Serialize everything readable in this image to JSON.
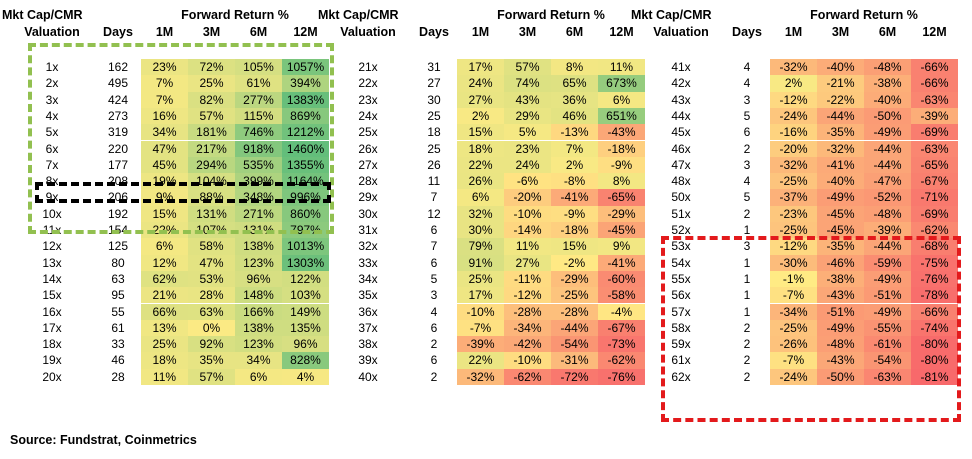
{
  "headers": {
    "group_title": "Mkt Cap/CMR",
    "forward_title": "Forward Return %",
    "valuation": "Valuation",
    "days": "Days",
    "periods": [
      "1M",
      "3M",
      "6M",
      "12M"
    ]
  },
  "source": "Source: Fundstrat, Coinmetrics",
  "colors": {
    "green_box": "#92c050",
    "black_box": "#000000",
    "red_box": "#e31a1c",
    "scale_red": "#f8696b",
    "scale_yellow": "#ffeb84",
    "scale_green": "#63be7b"
  },
  "chart_data": {
    "type": "table",
    "columns": [
      "Mkt Cap/CMR Valuation",
      "Days",
      "1M",
      "3M",
      "6M",
      "12M"
    ],
    "panels": [
      {
        "rows": [
          {
            "val": "1x",
            "days": "162",
            "r": [
              "23%",
              "72%",
              "105%",
              "1057%"
            ]
          },
          {
            "val": "2x",
            "days": "495",
            "r": [
              "7%",
              "25%",
              "61%",
              "394%"
            ]
          },
          {
            "val": "3x",
            "days": "424",
            "r": [
              "7%",
              "82%",
              "277%",
              "1383%"
            ]
          },
          {
            "val": "4x",
            "days": "273",
            "r": [
              "16%",
              "57%",
              "115%",
              "869%"
            ]
          },
          {
            "val": "5x",
            "days": "319",
            "r": [
              "34%",
              "181%",
              "746%",
              "1212%"
            ]
          },
          {
            "val": "6x",
            "days": "220",
            "r": [
              "47%",
              "217%",
              "918%",
              "1460%"
            ]
          },
          {
            "val": "7x",
            "days": "177",
            "r": [
              "45%",
              "294%",
              "535%",
              "1355%"
            ]
          },
          {
            "val": "8x",
            "days": "208",
            "r": [
              "19%",
              "104%",
              "399%",
              "1164%"
            ]
          },
          {
            "val": "9x",
            "days": "206",
            "r": [
              "9%",
              "88%",
              "348%",
              "996%"
            ]
          },
          {
            "val": "10x",
            "days": "192",
            "r": [
              "15%",
              "131%",
              "271%",
              "860%"
            ]
          },
          {
            "val": "11x",
            "days": "154",
            "r": [
              "22%",
              "107%",
              "131%",
              "797%"
            ]
          },
          {
            "val": "12x",
            "days": "125",
            "r": [
              "6%",
              "58%",
              "138%",
              "1013%"
            ]
          },
          {
            "val": "13x",
            "days": "80",
            "r": [
              "12%",
              "47%",
              "123%",
              "1303%"
            ]
          },
          {
            "val": "14x",
            "days": "63",
            "r": [
              "62%",
              "53%",
              "96%",
              "122%"
            ]
          },
          {
            "val": "15x",
            "days": "95",
            "r": [
              "21%",
              "28%",
              "148%",
              "103%"
            ]
          },
          {
            "val": "16x",
            "days": "55",
            "r": [
              "66%",
              "63%",
              "166%",
              "149%"
            ]
          },
          {
            "val": "17x",
            "days": "61",
            "r": [
              "13%",
              "0%",
              "138%",
              "135%"
            ]
          },
          {
            "val": "18x",
            "days": "33",
            "r": [
              "25%",
              "92%",
              "123%",
              "96%"
            ]
          },
          {
            "val": "19x",
            "days": "46",
            "r": [
              "18%",
              "35%",
              "34%",
              "828%"
            ]
          },
          {
            "val": "20x",
            "days": "28",
            "r": [
              "11%",
              "57%",
              "6%",
              "4%"
            ]
          }
        ]
      },
      {
        "rows": [
          {
            "val": "21x",
            "days": "31",
            "r": [
              "17%",
              "57%",
              "8%",
              "11%"
            ]
          },
          {
            "val": "22x",
            "days": "27",
            "r": [
              "24%",
              "74%",
              "65%",
              "673%"
            ]
          },
          {
            "val": "23x",
            "days": "30",
            "r": [
              "27%",
              "43%",
              "36%",
              "6%"
            ]
          },
          {
            "val": "24x",
            "days": "25",
            "r": [
              "2%",
              "29%",
              "46%",
              "651%"
            ]
          },
          {
            "val": "25x",
            "days": "18",
            "r": [
              "15%",
              "5%",
              "-13%",
              "-43%"
            ]
          },
          {
            "val": "26x",
            "days": "25",
            "r": [
              "18%",
              "23%",
              "7%",
              "-18%"
            ]
          },
          {
            "val": "27x",
            "days": "26",
            "r": [
              "22%",
              "24%",
              "2%",
              "-9%"
            ]
          },
          {
            "val": "28x",
            "days": "11",
            "r": [
              "26%",
              "-6%",
              "-8%",
              "8%"
            ]
          },
          {
            "val": "29x",
            "days": "7",
            "r": [
              "6%",
              "-20%",
              "-41%",
              "-65%"
            ]
          },
          {
            "val": "30x",
            "days": "12",
            "r": [
              "32%",
              "-10%",
              "-9%",
              "-29%"
            ]
          },
          {
            "val": "31x",
            "days": "6",
            "r": [
              "30%",
              "-14%",
              "-18%",
              "-45%"
            ]
          },
          {
            "val": "32x",
            "days": "7",
            "r": [
              "79%",
              "11%",
              "15%",
              "9%"
            ]
          },
          {
            "val": "33x",
            "days": "6",
            "r": [
              "91%",
              "27%",
              "-2%",
              "-41%"
            ]
          },
          {
            "val": "34x",
            "days": "5",
            "r": [
              "25%",
              "-11%",
              "-29%",
              "-60%"
            ]
          },
          {
            "val": "35x",
            "days": "3",
            "r": [
              "17%",
              "-12%",
              "-25%",
              "-58%"
            ]
          },
          {
            "val": "36x",
            "days": "4",
            "r": [
              "-10%",
              "-28%",
              "-28%",
              "-4%"
            ]
          },
          {
            "val": "37x",
            "days": "6",
            "r": [
              "-7%",
              "-34%",
              "-44%",
              "-67%"
            ]
          },
          {
            "val": "38x",
            "days": "2",
            "r": [
              "-39%",
              "-42%",
              "-54%",
              "-73%"
            ]
          },
          {
            "val": "39x",
            "days": "6",
            "r": [
              "22%",
              "-10%",
              "-31%",
              "-62%"
            ]
          },
          {
            "val": "40x",
            "days": "2",
            "r": [
              "-32%",
              "-62%",
              "-72%",
              "-76%"
            ]
          }
        ]
      },
      {
        "rows": [
          {
            "val": "41x",
            "days": "4",
            "r": [
              "-32%",
              "-40%",
              "-48%",
              "-66%"
            ]
          },
          {
            "val": "42x",
            "days": "4",
            "r": [
              "2%",
              "-21%",
              "-38%",
              "-66%"
            ]
          },
          {
            "val": "43x",
            "days": "3",
            "r": [
              "-12%",
              "-22%",
              "-40%",
              "-63%"
            ]
          },
          {
            "val": "44x",
            "days": "5",
            "r": [
              "-24%",
              "-44%",
              "-50%",
              "-39%"
            ]
          },
          {
            "val": "45x",
            "days": "6",
            "r": [
              "-16%",
              "-35%",
              "-49%",
              "-69%"
            ]
          },
          {
            "val": "46x",
            "days": "2",
            "r": [
              "-20%",
              "-32%",
              "-44%",
              "-63%"
            ]
          },
          {
            "val": "47x",
            "days": "3",
            "r": [
              "-32%",
              "-41%",
              "-44%",
              "-65%"
            ]
          },
          {
            "val": "48x",
            "days": "4",
            "r": [
              "-25%",
              "-40%",
              "-47%",
              "-67%"
            ]
          },
          {
            "val": "50x",
            "days": "5",
            "r": [
              "-37%",
              "-49%",
              "-52%",
              "-71%"
            ]
          },
          {
            "val": "51x",
            "days": "2",
            "r": [
              "-23%",
              "-45%",
              "-48%",
              "-69%"
            ]
          },
          {
            "val": "52x",
            "days": "1",
            "r": [
              "-25%",
              "-45%",
              "-39%",
              "-62%"
            ]
          },
          {
            "val": "53x",
            "days": "3",
            "r": [
              "-12%",
              "-35%",
              "-44%",
              "-68%"
            ]
          },
          {
            "val": "54x",
            "days": "1",
            "r": [
              "-30%",
              "-46%",
              "-59%",
              "-75%"
            ]
          },
          {
            "val": "55x",
            "days": "1",
            "r": [
              "-1%",
              "-38%",
              "-49%",
              "-76%"
            ]
          },
          {
            "val": "56x",
            "days": "1",
            "r": [
              "-7%",
              "-43%",
              "-51%",
              "-78%"
            ]
          },
          {
            "val": "57x",
            "days": "1",
            "r": [
              "-34%",
              "-51%",
              "-49%",
              "-66%"
            ]
          },
          {
            "val": "58x",
            "days": "2",
            "r": [
              "-25%",
              "-49%",
              "-55%",
              "-74%"
            ]
          },
          {
            "val": "59x",
            "days": "2",
            "r": [
              "-26%",
              "-48%",
              "-61%",
              "-80%"
            ]
          },
          {
            "val": "61x",
            "days": "2",
            "r": [
              "-7%",
              "-43%",
              "-54%",
              "-80%"
            ]
          },
          {
            "val": "62x",
            "days": "2",
            "r": [
              "-24%",
              "-50%",
              "-63%",
              "-81%"
            ]
          }
        ]
      }
    ]
  }
}
